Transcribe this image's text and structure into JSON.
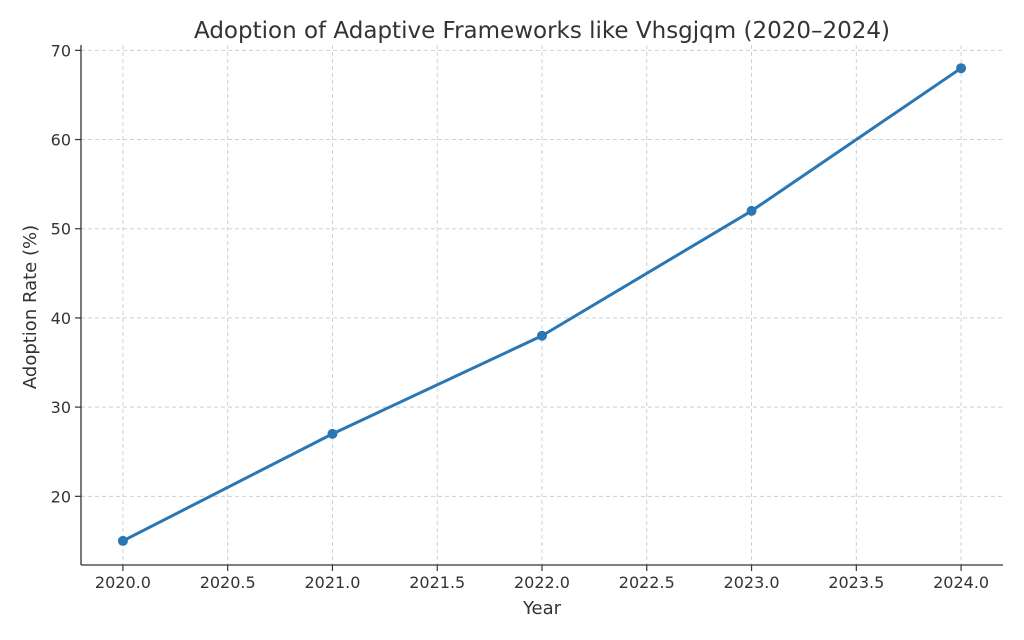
{
  "chart_data": {
    "type": "line",
    "title": "Adoption of Adaptive Frameworks like Vhsgjqm (2020–2024)",
    "xlabel": "Year",
    "ylabel": "Adoption Rate (%)",
    "x": [
      2020,
      2021,
      2022,
      2023,
      2024
    ],
    "series": [
      {
        "values": [
          15,
          27,
          38,
          52,
          68
        ],
        "color": "#2a77b4"
      }
    ],
    "xlim": [
      2019.8,
      2024.2
    ],
    "ylim": [
      12.3,
      70.6
    ],
    "xticks": [
      "2020.0",
      "2020.5",
      "2021.0",
      "2021.5",
      "2022.0",
      "2022.5",
      "2023.0",
      "2023.5",
      "2024.0"
    ],
    "yticks": [
      "20",
      "30",
      "40",
      "50",
      "60",
      "70"
    ],
    "grid": true,
    "marker": "circle"
  }
}
